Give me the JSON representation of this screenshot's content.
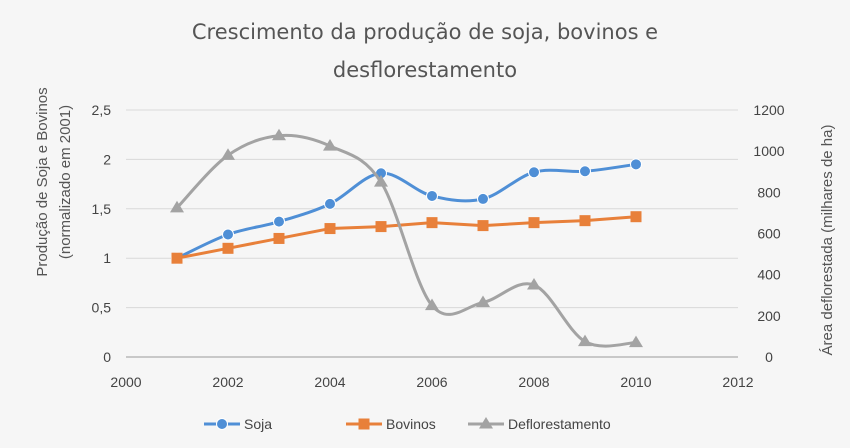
{
  "chart_data": {
    "type": "line",
    "title_lines": [
      "Crescimento da produção de soja, bovinos e",
      "desflorestamento"
    ],
    "ylabel_left_lines": [
      "Produção de Soja e Bovinos",
      "(normalizado em 2001)"
    ],
    "ylabel_right": "Área deflorestada (milhares de ha)",
    "xlim": [
      2000,
      2012
    ],
    "ylim_left": [
      0,
      2.5
    ],
    "ylim_right": [
      0,
      1200
    ],
    "x_ticks": [
      "2000",
      "2002",
      "2004",
      "2006",
      "2008",
      "2010",
      "2012"
    ],
    "y_left_ticks": [
      "0",
      "0,5",
      "1",
      "1,5",
      "2",
      "2,5"
    ],
    "y_right_ticks": [
      "0",
      "200",
      "400",
      "600",
      "800",
      "1000",
      "1200"
    ],
    "legend_position": "bottom",
    "series": [
      {
        "name": "Soja",
        "axis": "left",
        "color": "#4f8fd6",
        "marker": "circle",
        "smooth": true,
        "x": [
          2001,
          2002,
          2003,
          2004,
          2005,
          2006,
          2007,
          2008,
          2009,
          2010
        ],
        "y": [
          1.0,
          1.24,
          1.37,
          1.55,
          1.86,
          1.63,
          1.6,
          1.87,
          1.88,
          1.95
        ]
      },
      {
        "name": "Bovinos",
        "axis": "left",
        "color": "#e8803a",
        "marker": "square",
        "smooth": false,
        "x": [
          2001,
          2002,
          2003,
          2004,
          2005,
          2006,
          2007,
          2008,
          2009,
          2010
        ],
        "y": [
          1.0,
          1.1,
          1.2,
          1.3,
          1.32,
          1.36,
          1.33,
          1.36,
          1.38,
          1.42
        ]
      },
      {
        "name": "Deflorestamento",
        "axis": "right",
        "color": "#a3a3a3",
        "marker": "triangle",
        "smooth": true,
        "x": [
          2001,
          2002,
          2003,
          2004,
          2005,
          2006,
          2007,
          2008,
          2009,
          2010
        ],
        "y": [
          725,
          980,
          1075,
          1025,
          850,
          250,
          265,
          350,
          75,
          70
        ]
      }
    ]
  }
}
